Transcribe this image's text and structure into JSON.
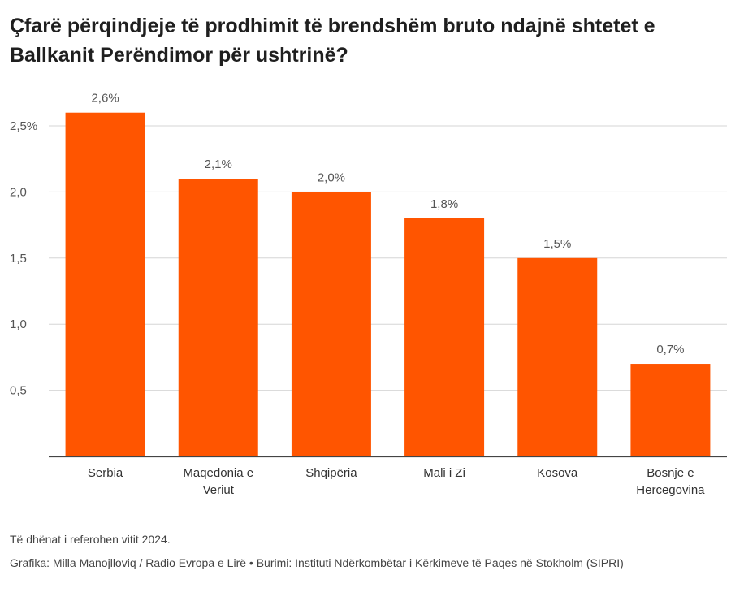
{
  "title": "Çfarë përqindjeje të prodhimit të brendshëm bruto ndajnë shtetet e Ballkanit Perëndimor për ushtrinë?",
  "chart_data": {
    "type": "bar",
    "title": "Çfarë përqindjeje të prodhimit të brendshëm bruto ndajnë shtetet e Ballkanit Perëndimor për ushtrinë?",
    "categories": [
      [
        "Serbia"
      ],
      [
        "Maqedonia e",
        "Veriut"
      ],
      [
        "Shqipëria"
      ],
      [
        "Mali i Zi"
      ],
      [
        "Kosova"
      ],
      [
        "Bosnje e",
        "Hercegovina"
      ]
    ],
    "values": [
      2.6,
      2.1,
      2.0,
      1.8,
      1.5,
      0.7
    ],
    "value_labels": [
      "2,6%",
      "2,1%",
      "2,0%",
      "1,8%",
      "1,5%",
      "0,7%"
    ],
    "y_ticks": [
      0.5,
      1.0,
      1.5,
      2.0,
      2.5
    ],
    "y_tick_labels": [
      "0,5",
      "1,0",
      "1,5",
      "2,0",
      "2,5%"
    ],
    "ylim": [
      0,
      2.5
    ],
    "xlabel": "",
    "ylabel": "",
    "grid": true,
    "bar_color": "#ff5500"
  },
  "footer": {
    "note": "Të dhënat i referohen vitit 2024.",
    "credits": "Grafika: Milla Manojlloviq / Radio Evropa e Lirë • Burimi: Instituti Ndërkombëtar i Kërkimeve të Paqes në Stokholm (SIPRI)"
  }
}
